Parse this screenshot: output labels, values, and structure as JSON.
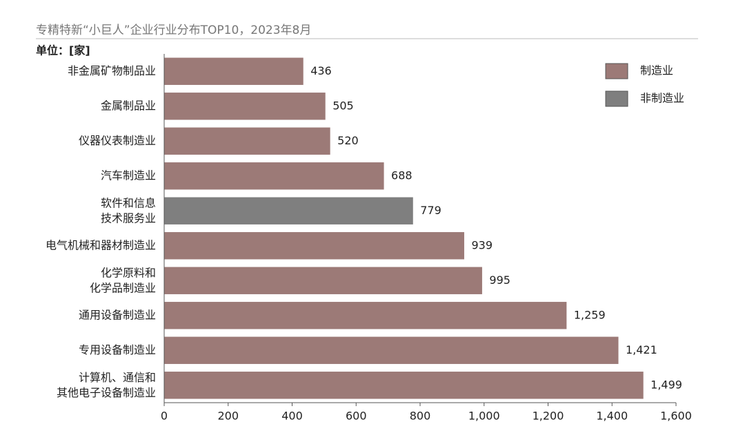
{
  "chart_data": {
    "type": "hbar",
    "title": "专精特新“小巨人”企业行业分布TOP10，2023年8月",
    "unit_label": "单位：[家]",
    "categories": [
      "非金属矿物制品业",
      "金属制品业",
      "仪器仪表制造业",
      "汽车制造业",
      "软件和信息\n技术服务业",
      "电气机械和器材制造业",
      "化学原料和\n化学品制造业",
      "通用设备制造业",
      "专用设备制造业",
      "计算机、通信和\n其他电子设备制造业"
    ],
    "values": [
      436,
      505,
      520,
      688,
      779,
      939,
      995,
      1259,
      1421,
      1499
    ],
    "value_labels": [
      "436",
      "505",
      "520",
      "688",
      "779",
      "939",
      "995",
      "1,259",
      "1,421",
      "1,499"
    ],
    "colors": [
      "#9c7a77",
      "#9c7a77",
      "#9c7a77",
      "#9c7a77",
      "#7f7f7f",
      "#9c7a77",
      "#9c7a77",
      "#9c7a77",
      "#9c7a77",
      "#9c7a77"
    ],
    "legend": [
      {
        "name": "制造业",
        "color": "#9c7a77"
      },
      {
        "name": "非制造业",
        "color": "#7f7f7f"
      }
    ],
    "xlim": [
      0,
      1600
    ],
    "xticks": [
      0,
      200,
      400,
      600,
      800,
      {
        "value": 1000,
        "label": "1,000"
      },
      {
        "value": 1200,
        "label": "1,200"
      },
      {
        "value": 1400,
        "label": "1,400"
      },
      {
        "value": 1600,
        "label": "1,600"
      }
    ]
  }
}
